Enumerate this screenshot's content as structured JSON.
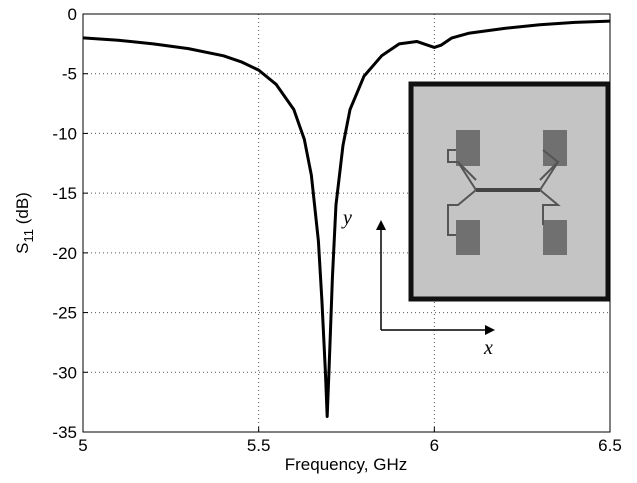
{
  "chart_data": {
    "type": "line",
    "xlabel": "Frequency, GHz",
    "ylabel": [
      "S",
      "11",
      " (dB)"
    ],
    "annotations": [
      "y",
      "x"
    ],
    "x": [
      5.0,
      5.1,
      5.2,
      5.3,
      5.4,
      5.45,
      5.5,
      5.55,
      5.6,
      5.63,
      5.65,
      5.67,
      5.68,
      5.69,
      5.695,
      5.7,
      5.71,
      5.72,
      5.74,
      5.76,
      5.8,
      5.85,
      5.9,
      5.95,
      5.98,
      6.0,
      6.02,
      6.05,
      6.1,
      6.2,
      6.3,
      6.4,
      6.5
    ],
    "series": [
      {
        "color": "#000000",
        "values": [
          -2.0,
          -2.2,
          -2.5,
          -2.9,
          -3.5,
          -4.0,
          -4.7,
          -5.9,
          -8.0,
          -10.5,
          -13.5,
          -19,
          -24,
          -30,
          -33.7,
          -30,
          -22,
          -16,
          -11,
          -8,
          -5.2,
          -3.5,
          -2.5,
          -2.3,
          -2.6,
          -2.8,
          -2.6,
          -2.0,
          -1.6,
          -1.2,
          -0.9,
          -0.7,
          -0.6
        ]
      }
    ],
    "xlim": [
      5,
      6.5
    ],
    "xticks": [
      5,
      5.5,
      6,
      6.5
    ],
    "ylim": [
      -35,
      0
    ],
    "yticks": [
      0,
      -5,
      -10,
      -15,
      -20,
      -25,
      -30,
      -35
    ],
    "grid": true
  }
}
